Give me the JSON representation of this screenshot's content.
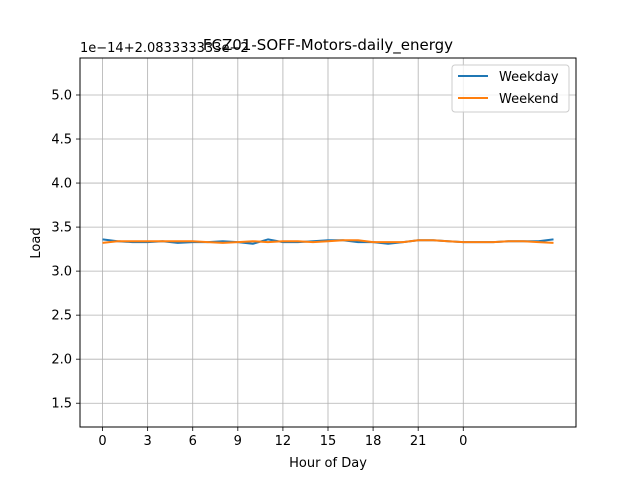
{
  "chart_data": {
    "type": "line",
    "title": "FCZ01-SOFF-Motors-daily_energy",
    "offset_text": "1e−14+2.083333333e−2",
    "xlabel": "Hour of Day",
    "ylabel": "Load",
    "x_tick_labels": [
      "0",
      "3",
      "6",
      "9",
      "12",
      "15",
      "18",
      "21",
      "0"
    ],
    "y_tick_labels": [
      "1.5",
      "2.0",
      "2.5",
      "3.0",
      "3.5",
      "4.0",
      "4.5",
      "5.0"
    ],
    "y_ticks": [
      1.5,
      2.0,
      2.5,
      3.0,
      3.5,
      4.0,
      4.5,
      5.0
    ],
    "xlim": [
      -1.5,
      31.5
    ],
    "ylim": [
      1.23,
      5.42
    ],
    "grid": true,
    "legend_position": "top-right",
    "x": [
      0,
      1,
      2,
      3,
      4,
      5,
      6,
      7,
      8,
      9,
      10,
      11,
      12,
      13,
      14,
      15,
      16,
      17,
      18,
      19,
      20,
      21,
      22,
      23,
      24,
      25,
      26,
      27,
      28,
      29,
      30
    ],
    "series": [
      {
        "name": "Weekday",
        "color": "#1f77b4",
        "values": [
          3.36,
          3.34,
          3.33,
          3.33,
          3.34,
          3.32,
          3.33,
          3.33,
          3.34,
          3.33,
          3.31,
          3.36,
          3.33,
          3.33,
          3.34,
          3.35,
          3.35,
          3.33,
          3.33,
          3.31,
          3.33,
          3.35,
          3.35,
          3.34,
          3.33,
          3.33,
          3.33,
          3.34,
          3.34,
          3.34,
          3.36
        ]
      },
      {
        "name": "Weekend",
        "color": "#ff7f0e",
        "values": [
          3.32,
          3.34,
          3.34,
          3.34,
          3.34,
          3.34,
          3.34,
          3.33,
          3.32,
          3.33,
          3.34,
          3.33,
          3.34,
          3.34,
          3.33,
          3.34,
          3.35,
          3.35,
          3.33,
          3.33,
          3.33,
          3.35,
          3.35,
          3.34,
          3.33,
          3.33,
          3.33,
          3.34,
          3.34,
          3.33,
          3.32
        ]
      }
    ]
  }
}
